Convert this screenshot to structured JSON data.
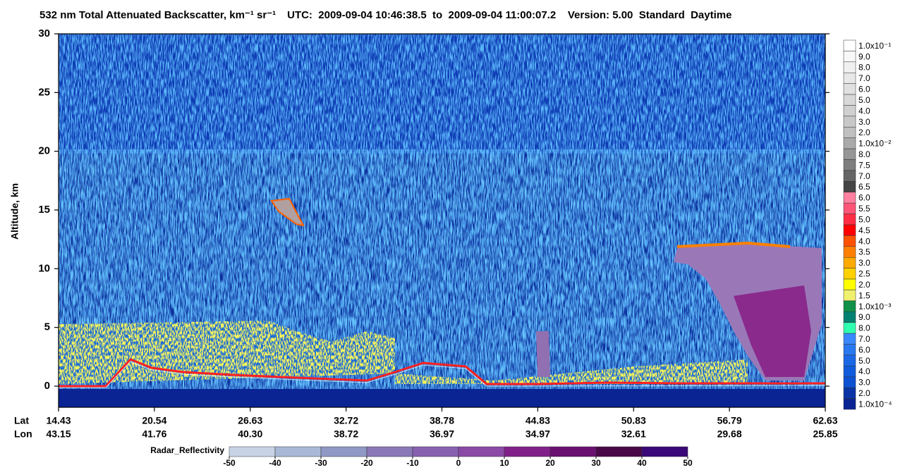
{
  "chart_data": {
    "type": "heatmap",
    "title": "532 nm Total Attenuated Backscatter, km⁻¹ sr⁻¹",
    "subtitle": "UTC:  2009-09-04 10:46:38.5  to  2009-09-04 11:00:07.2    Version: 5.00  Standard  Daytime",
    "y_label": "Altitude, km",
    "ylim": [
      -1.8,
      30
    ],
    "yticks": [
      0,
      5,
      10,
      15,
      20,
      25,
      30
    ],
    "lat_label": "Lat",
    "lat": [
      "14.43",
      "20.54",
      "26.63",
      "32.72",
      "38.78",
      "44.83",
      "50.83",
      "56.79",
      "62.63"
    ],
    "lon_label": "Lon",
    "lon": [
      "43.15",
      "41.76",
      "40.30",
      "38.72",
      "36.97",
      "34.97",
      "32.61",
      "29.68",
      "25.85"
    ],
    "colorbar": {
      "labels": [
        "1.0x10⁻¹",
        "9.0",
        "8.0",
        "7.0",
        "6.0",
        "5.0",
        "4.0",
        "3.0",
        "2.0",
        "1.0x10⁻²",
        "8.0",
        "7.5",
        "7.0",
        "6.5",
        "6.0",
        "5.5",
        "5.0",
        "4.5",
        "4.0",
        "3.5",
        "3.0",
        "2.5",
        "2.0",
        "1.5",
        "1.0x10⁻³",
        "9.0",
        "8.0",
        "7.0",
        "6.0",
        "5.0",
        "4.0",
        "3.0",
        "2.0",
        "1.0x10⁻⁴"
      ],
      "colors": [
        "#ffffff",
        "#f8f8f8",
        "#f0f0f0",
        "#e8e8e8",
        "#e0e0e0",
        "#d8d8d8",
        "#d0d0d0",
        "#c8c8c8",
        "#c0c0c0",
        "#aaaaaa",
        "#969696",
        "#7e7e7e",
        "#666666",
        "#444444",
        "#ff80a0",
        "#ff5577",
        "#ff2d44",
        "#ff0000",
        "#ff5200",
        "#ff8000",
        "#ffaa00",
        "#ffd000",
        "#ffff00",
        "#f0f070",
        "#109048",
        "#008070",
        "#30ffb0",
        "#3a88ff",
        "#2878f0",
        "#1a68e6",
        "#105cdc",
        "#0c52d2",
        "#0a34a6",
        "#0a2494"
      ]
    },
    "radar": {
      "label": "Radar_Reflectivity",
      "ticks": [
        -50,
        -40,
        -30,
        -20,
        -10,
        0,
        10,
        20,
        30,
        40,
        50
      ],
      "colors": [
        "#c8d4e6",
        "#a8b8d6",
        "#9098c6",
        "#8a78b8",
        "#8860b0",
        "#8a4aa6",
        "#82208a",
        "#6a1070",
        "#4a0848",
        "#3a0878"
      ]
    }
  }
}
